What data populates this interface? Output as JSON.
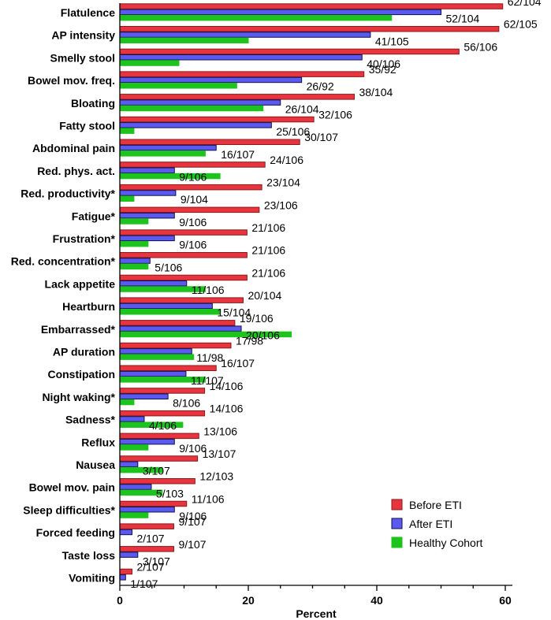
{
  "chart_data": {
    "type": "bar",
    "orientation": "horizontal",
    "title": "",
    "xlabel": "Percent",
    "ylabel": "",
    "xlim": [
      0,
      60
    ],
    "xticks": [
      0,
      20,
      40,
      60
    ],
    "grid": false,
    "legend_position": "bottom-right",
    "categories": [
      "Flatulence",
      "AP intensity",
      "Smelly stool",
      "Bowel mov. freq.",
      "Bloating",
      "Fatty stool",
      "Abdominal pain",
      "Red. phys. act.",
      "Red. productivity*",
      "Fatigue*",
      "Frustration*",
      "Red. concentration*",
      "Lack appetite",
      "Heartburn",
      "Embarrassed*",
      "AP duration",
      "Constipation",
      "Night waking*",
      "Sadness*",
      "Reflux",
      "Nausea",
      "Bowel mov. pain",
      "Sleep difficulties*",
      "Forced feeding",
      "Taste loss",
      "Vomiting"
    ],
    "series": [
      {
        "name": "Before ETI",
        "color": "#e8343f",
        "stroke": "#8a1a1a",
        "values": [
          59.6,
          59.0,
          52.8,
          38.0,
          36.5,
          30.2,
          28.0,
          22.6,
          22.1,
          21.7,
          19.8,
          19.8,
          19.8,
          19.2,
          17.9,
          17.3,
          15.0,
          13.2,
          13.2,
          12.3,
          12.1,
          11.7,
          10.4,
          8.4,
          8.4,
          1.9
        ],
        "labels": [
          "62/104",
          "62/105",
          "56/106",
          "35/92",
          "38/104",
          "32/106",
          "30/107",
          "24/106",
          "23/104",
          "23/106",
          "21/106",
          "21/106",
          "21/106",
          "20/104",
          "19/106",
          "17/98",
          "16/107",
          "14/106",
          "14/106",
          "13/106",
          "13/107",
          "12/103",
          "11/106",
          "9/107",
          "9/107",
          "2/107"
        ]
      },
      {
        "name": "After ETI",
        "color": "#5a5af0",
        "stroke": "#10104a",
        "values": [
          50.0,
          39.0,
          37.7,
          28.3,
          25.0,
          23.6,
          15.0,
          8.5,
          8.7,
          8.5,
          8.5,
          4.7,
          10.4,
          14.4,
          18.9,
          11.2,
          10.3,
          7.5,
          3.8,
          8.5,
          2.8,
          4.9,
          8.5,
          1.9,
          2.8,
          0.9
        ],
        "labels": [
          "52/104",
          "41/105",
          "40/106",
          "26/92",
          "26/104",
          "25/106",
          "16/107",
          "9/106",
          "9/104",
          "9/106",
          "9/106",
          "5/106",
          "11/106",
          "15/104",
          "20/106",
          "11/98",
          "11/107",
          "8/106",
          "4/106",
          "9/106",
          "3/107",
          "5/103",
          "9/106",
          "2/107",
          "3/107",
          "1/107"
        ]
      },
      {
        "name": "Healthy Cohort",
        "color": "#1ec41e",
        "stroke": "#1ec41e",
        "values": [
          42.3,
          20.0,
          9.2,
          18.2,
          22.3,
          2.2,
          13.3,
          15.6,
          2.2,
          4.4,
          4.4,
          4.4,
          13.3,
          15.6,
          26.7,
          11.5,
          13.3,
          2.2,
          9.8,
          4.4,
          6.6,
          6.6,
          4.4,
          0,
          0,
          0
        ],
        "labels": []
      }
    ]
  },
  "legend": {
    "entries": [
      "Before ETI",
      "After ETI",
      "Healthy Cohort"
    ]
  }
}
